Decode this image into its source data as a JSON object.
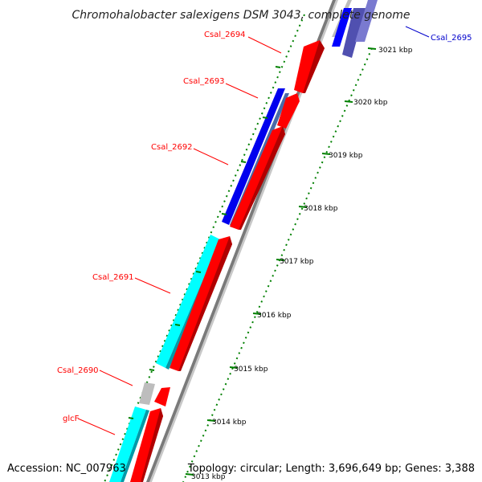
{
  "title": "Chromohalobacter salexigens DSM 3043, complete genome",
  "footer": {
    "accession": "Accession: NC_007963",
    "topology": "Topology: circular; Length: 3,696,649 bp; Genes: 3,388"
  },
  "colors": {
    "forward_cds": "#ff0000",
    "reverse_cds": "#00ffff",
    "reverse_cds_blue": "#0000ff",
    "other_gene": "#c0c0c0",
    "backbone": "#888888",
    "ticks": "#008000",
    "label_red": "#ff0000",
    "label_blue": "#0000cc"
  },
  "scale_ticks": [
    {
      "label": "3021 kbp",
      "value": 3021
    },
    {
      "label": "3020 kbp",
      "value": 3020
    },
    {
      "label": "3019 kbp",
      "value": 3019
    },
    {
      "label": "3018 kbp",
      "value": 3018
    },
    {
      "label": "3017 kbp",
      "value": 3017
    },
    {
      "label": "3016 kbp",
      "value": 3016
    },
    {
      "label": "3015 kbp",
      "value": 3015
    },
    {
      "label": "3014 kbp",
      "value": 3014
    },
    {
      "label": "3013 kbp",
      "value": 3013
    }
  ],
  "genes": [
    {
      "name": "Csal_2695",
      "color_key": "label_blue"
    },
    {
      "name": "Csal_2694",
      "color_key": "label_red"
    },
    {
      "name": "Csal_2693",
      "color_key": "label_red"
    },
    {
      "name": "Csal_2692",
      "color_key": "label_red"
    },
    {
      "name": "Csal_2691",
      "color_key": "label_red"
    },
    {
      "name": "Csal_2690",
      "color_key": "label_red"
    },
    {
      "name": "glcF",
      "color_key": "label_red"
    }
  ]
}
